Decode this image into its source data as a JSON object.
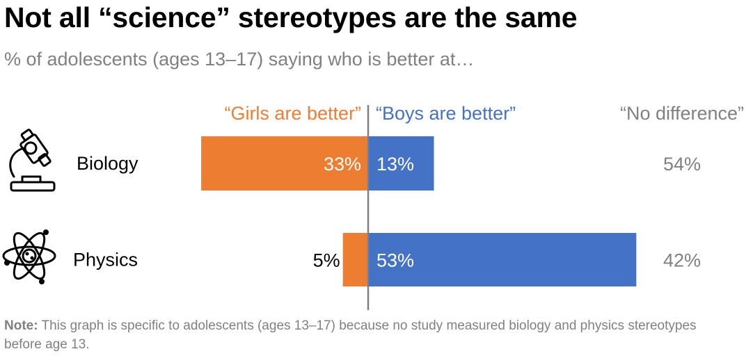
{
  "title": "Not all “science” stereotypes are the same",
  "subtitle": "% of adolescents (ages 13–17) saying who is better at…",
  "note": {
    "label": "Note:",
    "text": " This graph is specific to adolescents (ages 13–17) because no study measured biology and physics stereotypes before age 13."
  },
  "colors": {
    "girls": "#ED7D31",
    "boys": "#4472C4",
    "no_difference": "#808080"
  },
  "chart_data": {
    "type": "bar",
    "orientation": "diverging-horizontal",
    "categories": [
      "Biology",
      "Physics"
    ],
    "category_icons": [
      "microscope-icon",
      "atom-icon"
    ],
    "series": [
      {
        "name": "“Girls are better”",
        "values": [
          33,
          5
        ],
        "labels": [
          "33%",
          "5%"
        ]
      },
      {
        "name": "“Boys are better”",
        "values": [
          13,
          53
        ],
        "labels": [
          "13%",
          "53%"
        ]
      },
      {
        "name": "“No difference”",
        "values": [
          54,
          42
        ],
        "labels": [
          "54%",
          "42%"
        ]
      }
    ]
  }
}
